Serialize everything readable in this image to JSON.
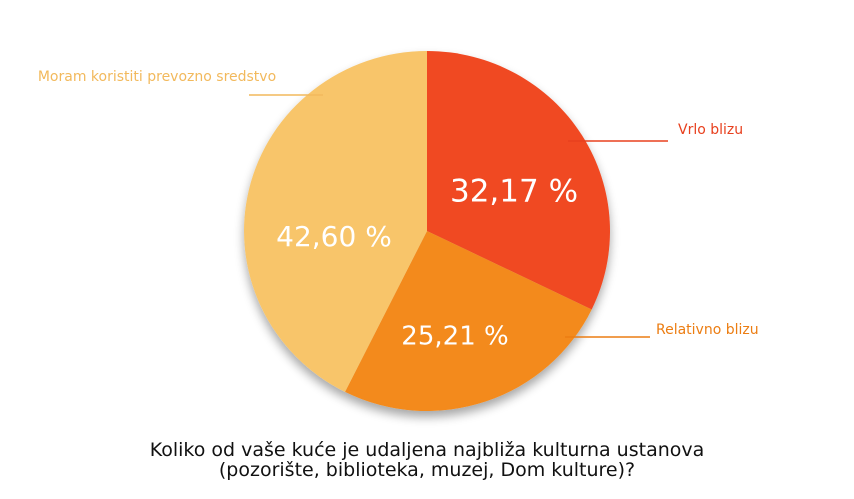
{
  "chart_data": {
    "type": "pie",
    "categories": [
      "Vrlo blizu",
      "Relativno blizu",
      "Moram koristiti prevozno sredstvo"
    ],
    "values": [
      32.17,
      25.21,
      42.6
    ],
    "value_labels": [
      "32,17 %",
      "25,21 %",
      "42,60 %"
    ],
    "colors": [
      "#f04a24",
      "#f38a1c",
      "#f8c56a"
    ],
    "label_colors": [
      "#e8401e",
      "#ec7d12",
      "#f2b95c"
    ],
    "title_lines": [
      "Koliko od vaše kuće je udaljena najbliža kulturna ustanova",
      "(pozorište, biblioteka, muzej, Dom kulture)?"
    ],
    "legend": "none"
  }
}
